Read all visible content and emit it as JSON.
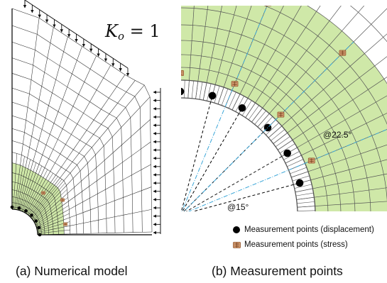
{
  "panel_a": {
    "caption": "(a) Numerical model",
    "ko_symbol": "K",
    "ko_subscript": "o",
    "ko_value": "= 1"
  },
  "panel_b": {
    "caption": "(b) Measurement points",
    "angle_label_small": "@15°",
    "angle_label_large": "@22.5°"
  },
  "legend": {
    "displacement_label": "Measurement points (displacement)",
    "stress_label": "Measurement points (stress)"
  },
  "colors": {
    "mesh_line": "#2a2a2a",
    "green_zone": "#cfe8a8",
    "displacement_point": "#000000",
    "stress_point": "#b8703a",
    "dashed_black": "#000000",
    "dashdot_blue": "#3aa6d8"
  },
  "icons": {
    "displacement_marker": "black-dot-icon",
    "stress_marker": "strain-gauge-icon"
  }
}
